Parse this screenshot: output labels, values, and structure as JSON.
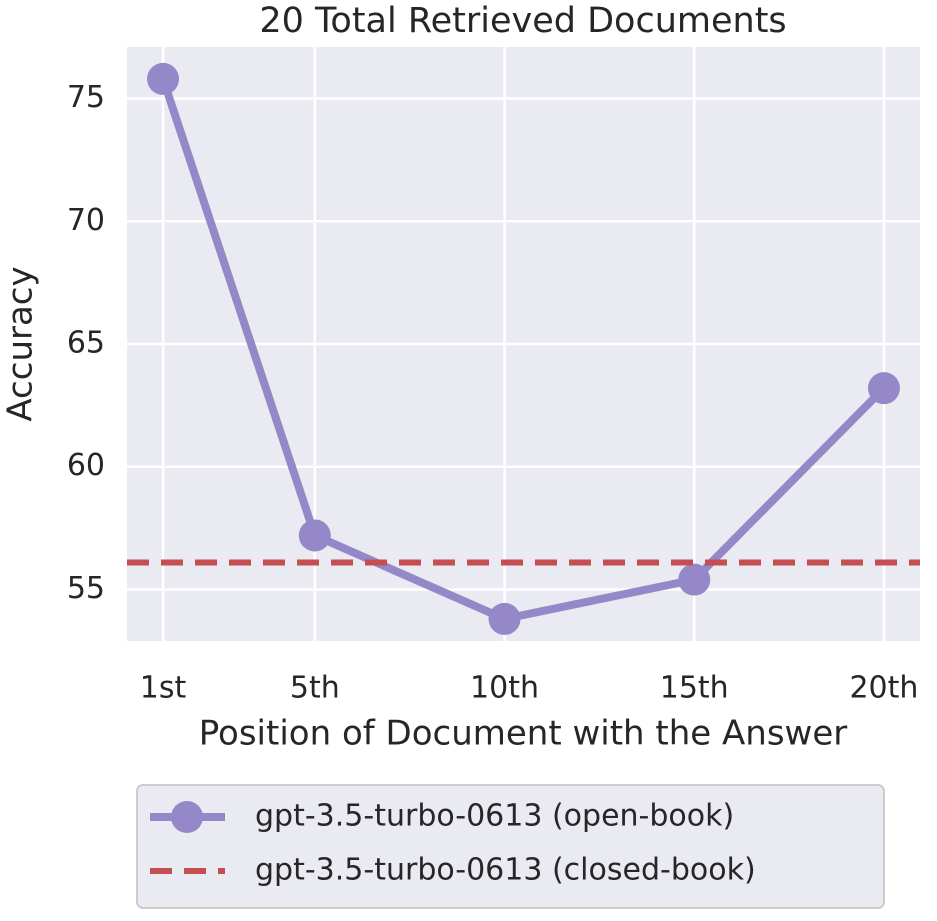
{
  "chart_data": {
    "type": "line",
    "title": "20 Total Retrieved Documents",
    "x_label": "Position of Document with the Answer",
    "y_label": "Accuracy",
    "x": [
      1,
      5,
      10,
      15,
      20
    ],
    "series": [
      {
        "name": "gpt-3.5-turbo-0613 (open-book)",
        "color": "#9488c8",
        "values": [
          75.8,
          57.2,
          53.8,
          55.4,
          63.2
        ]
      },
      {
        "name": "gpt-3.5-turbo-0613 (closed-book)",
        "color": "#c44e52",
        "y": 56.1,
        "linestyle": "dashed"
      }
    ],
    "xlim": [
      0.05,
      20.95
    ],
    "xticks": [
      {
        "value": 1,
        "label": "1st"
      },
      {
        "value": 5,
        "label": "5th"
      },
      {
        "value": 10,
        "label": "10th"
      },
      {
        "value": 15,
        "label": "15th"
      },
      {
        "value": 20,
        "label": "20th"
      }
    ],
    "ylim": [
      52.9,
      77.1
    ],
    "yticks": [
      55,
      60,
      65,
      70,
      75
    ],
    "grid": true,
    "legend": "bottom"
  }
}
